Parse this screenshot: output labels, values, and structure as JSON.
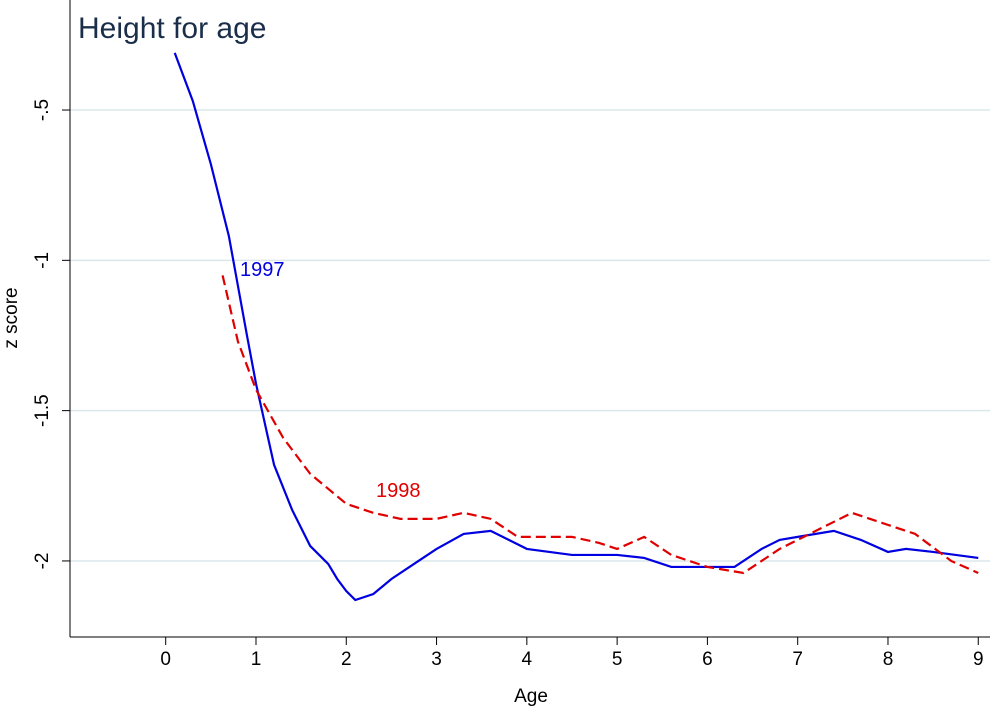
{
  "chart_data": {
    "type": "line",
    "title": "Height for age",
    "x_label": "Age",
    "y_label": "z score",
    "xlim": [
      -1.06,
      9.13
    ],
    "ylim": [
      -2.253,
      -0.134
    ],
    "xticks": [
      0,
      1,
      2,
      3,
      4,
      5,
      6,
      7,
      8,
      9
    ],
    "yticks": [
      {
        "value": -0.5,
        "label": "-.5"
      },
      -1,
      -1.5,
      -2
    ],
    "grid": true,
    "series": [
      {
        "name": "1997",
        "color": "#0000e0",
        "dash": false,
        "x": [
          0.1,
          0.3,
          0.5,
          0.7,
          0.9,
          1.0,
          1.2,
          1.4,
          1.6,
          1.8,
          1.9,
          2.0,
          2.1,
          2.3,
          2.5,
          2.8,
          3.0,
          3.3,
          3.6,
          3.8,
          4.0,
          4.5,
          5.0,
          5.3,
          5.6,
          6.0,
          6.3,
          6.6,
          6.8,
          7.0,
          7.4,
          7.7,
          8.0,
          8.2,
          8.5,
          9.0
        ],
        "values": [
          -0.31,
          -0.47,
          -0.68,
          -0.92,
          -1.25,
          -1.41,
          -1.68,
          -1.83,
          -1.95,
          -2.01,
          -2.06,
          -2.1,
          -2.13,
          -2.11,
          -2.06,
          -2.0,
          -1.96,
          -1.91,
          -1.9,
          -1.93,
          -1.96,
          -1.98,
          -1.98,
          -1.99,
          -2.02,
          -2.02,
          -2.02,
          -1.96,
          -1.93,
          -1.92,
          -1.9,
          -1.93,
          -1.97,
          -1.96,
          -1.97,
          -1.99
        ]
      },
      {
        "name": "1998",
        "color": "#e00000",
        "dash": true,
        "x": [
          0.63,
          0.8,
          1.0,
          1.3,
          1.6,
          2.0,
          2.3,
          2.6,
          3.0,
          3.3,
          3.6,
          3.9,
          4.2,
          4.5,
          4.8,
          5.0,
          5.3,
          5.6,
          6.0,
          6.4,
          6.8,
          7.2,
          7.6,
          8.0,
          8.3,
          8.7,
          9.0
        ],
        "values": [
          -1.05,
          -1.27,
          -1.43,
          -1.59,
          -1.71,
          -1.81,
          -1.84,
          -1.86,
          -1.86,
          -1.84,
          -1.86,
          -1.92,
          -1.92,
          -1.92,
          -1.94,
          -1.96,
          -1.92,
          -1.98,
          -2.02,
          -2.04,
          -1.96,
          -1.9,
          -1.84,
          -1.88,
          -1.91,
          -2.0,
          -2.04
        ]
      }
    ]
  }
}
